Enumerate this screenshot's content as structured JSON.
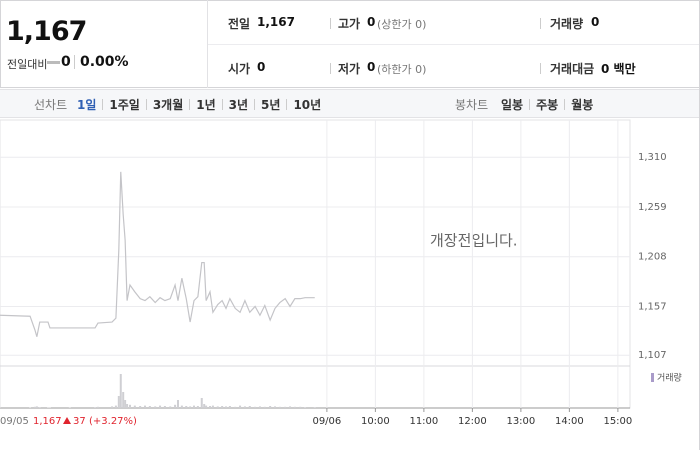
{
  "header": {
    "price": "1,167",
    "change_label": "전일대비",
    "change": "0",
    "change_rate": "0.00%"
  },
  "info": {
    "prev_close": {
      "label": "전일",
      "value": "1,167"
    },
    "high": {
      "label": "고가",
      "value": "0",
      "note": "(상한가 0)"
    },
    "volume": {
      "label": "거래량",
      "value": "0"
    },
    "open": {
      "label": "시가",
      "value": "0"
    },
    "low": {
      "label": "저가",
      "value": "0",
      "note": "(하한가 0)"
    },
    "amount": {
      "label": "거래대금",
      "value": "0 백만"
    }
  },
  "tabs": {
    "line_label": "선차트",
    "line": [
      "1일",
      "1주일",
      "3개월",
      "1년",
      "3년",
      "5년",
      "10년"
    ],
    "candle_label": "봉차트",
    "candle": [
      "일봉",
      "주봉",
      "월봉"
    ]
  },
  "chart": {
    "type": "line",
    "message": "개장전입니다.",
    "xlim": [
      2.26,
      15.25
    ],
    "xticks": [
      {
        "value": 9,
        "label": "09/06"
      },
      {
        "value": 10,
        "label": "10:00"
      },
      {
        "value": 11,
        "label": "11:00"
      },
      {
        "value": 12,
        "label": "12:00"
      },
      {
        "value": 13,
        "label": "13:00"
      },
      {
        "value": 14,
        "label": "14:00"
      },
      {
        "value": 15,
        "label": "15:00"
      }
    ],
    "ylim": [
      1097,
      1343
    ],
    "yticks": [
      {
        "value": 1310,
        "label": "1,310"
      },
      {
        "value": 1259,
        "label": "1,259"
      },
      {
        "value": 1208,
        "label": "1,208"
      },
      {
        "value": 1157,
        "label": "1,157"
      },
      {
        "value": 1107,
        "label": "1,107"
      }
    ],
    "grid": true,
    "price": {
      "color": "#c4c4c8",
      "x": [
        2.26,
        2.88,
        2.98,
        3.02,
        3.08,
        3.25,
        3.29,
        3.7,
        4.22,
        4.28,
        4.57,
        4.65,
        4.71,
        4.75,
        4.8,
        4.84,
        4.88,
        4.94,
        5.04,
        5.15,
        5.25,
        5.35,
        5.46,
        5.56,
        5.66,
        5.77,
        5.87,
        5.93,
        6.01,
        6.1,
        6.18,
        6.26,
        6.34,
        6.42,
        6.47,
        6.51,
        6.59,
        6.65,
        6.75,
        6.84,
        6.92,
        7.0,
        7.11,
        7.21,
        7.31,
        7.41,
        7.52,
        7.62,
        7.72,
        7.83,
        7.93,
        8.03,
        8.14,
        8.24,
        8.34,
        8.45,
        8.55,
        8.75
      ],
      "values": [
        1148,
        1147,
        1133,
        1126,
        1141,
        1141,
        1135,
        1135,
        1135,
        1140,
        1141,
        1145,
        1215,
        1295,
        1251,
        1225,
        1163,
        1179,
        1172,
        1165,
        1163,
        1167,
        1161,
        1166,
        1163,
        1165,
        1179,
        1163,
        1186,
        1165,
        1141,
        1163,
        1167,
        1202,
        1202,
        1163,
        1172,
        1151,
        1159,
        1163,
        1155,
        1165,
        1155,
        1151,
        1163,
        1151,
        1157,
        1148,
        1158,
        1143,
        1155,
        1161,
        1165,
        1157,
        1165,
        1165,
        1166,
        1166
      ]
    },
    "volume": {
      "label": "거래량",
      "color": "#cfcfd3",
      "legend_color": "#a99bc9",
      "ylim": [
        0,
        100
      ],
      "values": [
        2,
        1,
        3,
        4,
        2,
        1,
        1,
        1,
        2,
        3,
        4,
        6,
        30,
        85,
        40,
        20,
        10,
        8,
        6,
        5,
        6,
        5,
        4,
        6,
        5,
        4,
        8,
        20,
        6,
        5,
        4,
        6,
        5,
        25,
        10,
        6,
        5,
        6,
        4,
        5,
        4,
        5,
        3,
        6,
        4,
        5,
        3,
        4,
        3,
        5,
        4,
        3,
        3,
        4,
        3,
        3,
        2,
        2
      ]
    }
  },
  "status": {
    "date": "09/05",
    "price": "1,167",
    "change": "37",
    "rate": "(+3.27%)"
  }
}
